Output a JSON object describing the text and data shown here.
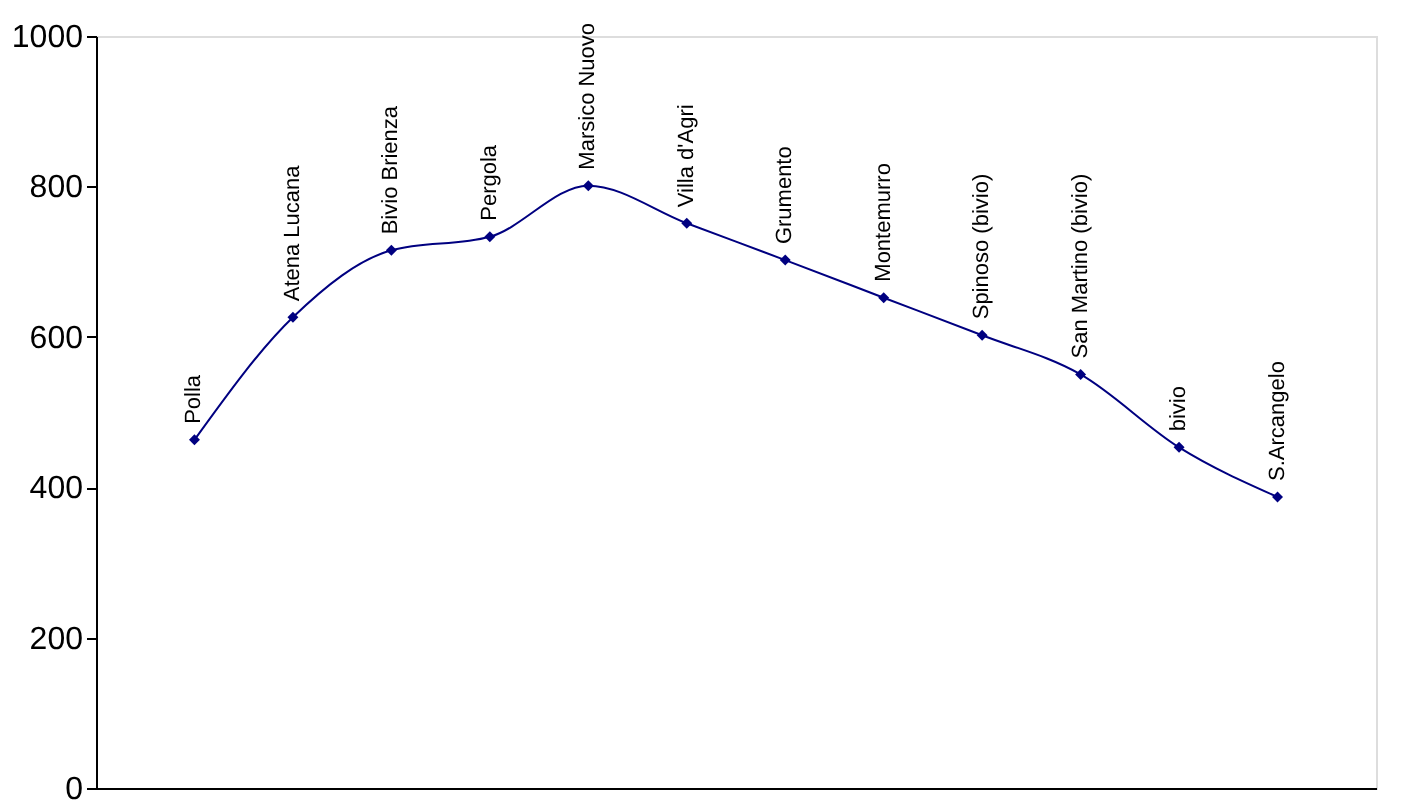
{
  "chart_data": {
    "type": "line",
    "categories": [
      "Polla",
      "Atena Lucana",
      "Bivio Brienza",
      "Pergola",
      "Marsico Nuovo",
      "Villa d'Agri",
      "Grumento",
      "Montemurro",
      "Spinoso (bivio)",
      "San Martino (bivio)",
      "bivio",
      "S.Arcangelo"
    ],
    "series": [
      {
        "color": "#000080",
        "values": [
          463,
          626,
          715,
          733,
          801,
          751,
          702,
          652,
          602,
          550,
          453,
          387
        ]
      }
    ],
    "ylim": [
      0,
      1000
    ],
    "yticks": [
      0,
      200,
      400,
      600,
      800,
      1000
    ],
    "grid": false,
    "marker": "diamond",
    "line_style": "solid",
    "tick_labels": "y"
  }
}
